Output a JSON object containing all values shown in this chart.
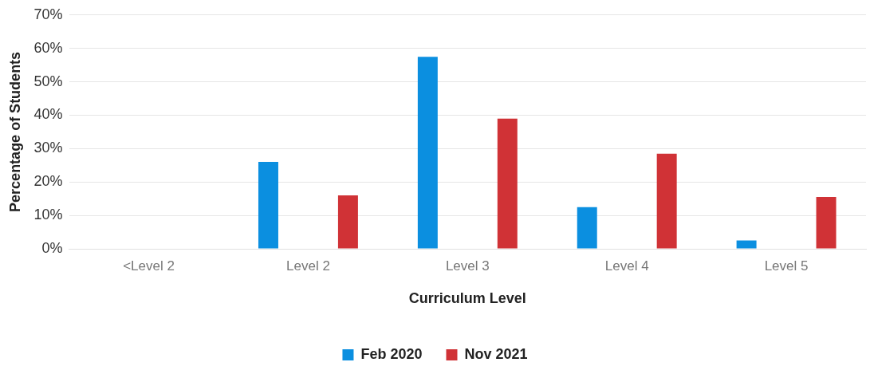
{
  "chart_data": {
    "type": "bar",
    "xlabel": "Curriculum Level",
    "ylabel": "Percentage of Students",
    "categories": [
      "<Level 2",
      "Level 2",
      "Level 3",
      "Level 4",
      "Level 5"
    ],
    "series": [
      {
        "name": "Feb 2020",
        "color": "#0b8fe0",
        "values": [
          0,
          26,
          57.5,
          12.5,
          2.5
        ]
      },
      {
        "name": "Nov 2021",
        "color": "#d03236",
        "values": [
          0,
          16,
          39,
          28.5,
          15.5
        ]
      }
    ],
    "ylim": [
      0,
      70
    ],
    "yticks": [
      {
        "value": 0,
        "label": "0%"
      },
      {
        "value": 10,
        "label": "10%"
      },
      {
        "value": 20,
        "label": "20%"
      },
      {
        "value": 30,
        "label": "30%"
      },
      {
        "value": 40,
        "label": "40%"
      },
      {
        "value": 50,
        "label": "50%"
      },
      {
        "value": 60,
        "label": "60%"
      },
      {
        "value": 70,
        "label": "70%"
      }
    ],
    "grid": "y",
    "legend": "bottom"
  }
}
